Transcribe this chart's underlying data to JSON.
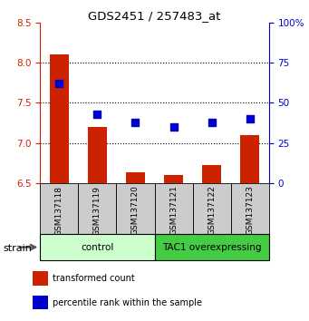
{
  "title": "GDS2451 / 257483_at",
  "samples": [
    "GSM137118",
    "GSM137119",
    "GSM137120",
    "GSM137121",
    "GSM137122",
    "GSM137123"
  ],
  "red_values": [
    8.1,
    7.2,
    6.63,
    6.6,
    6.72,
    7.1
  ],
  "blue_values": [
    62,
    43,
    38,
    35,
    38,
    40
  ],
  "ylim_left": [
    6.5,
    8.5
  ],
  "ylim_right": [
    0,
    100
  ],
  "yticks_left": [
    6.5,
    7.0,
    7.5,
    8.0,
    8.5
  ],
  "yticks_right": [
    0,
    25,
    50,
    75,
    100
  ],
  "ytick_labels_right": [
    "0",
    "25",
    "50",
    "75",
    "100%"
  ],
  "bar_color": "#cc2200",
  "dot_color": "#0000cc",
  "groups": [
    {
      "label": "control",
      "start": 0,
      "end": 3,
      "color": "#ccffcc"
    },
    {
      "label": "TAC1 overexpressing",
      "start": 3,
      "end": 6,
      "color": "#44cc44"
    }
  ],
  "strain_label": "strain",
  "legend_items": [
    {
      "color": "#cc2200",
      "label": "transformed count"
    },
    {
      "color": "#0000cc",
      "label": "percentile rank within the sample"
    }
  ],
  "left_axis_color": "#cc2200",
  "right_axis_color": "#0000cc",
  "bar_width": 0.5,
  "dot_size": 30,
  "sample_box_color": "#cccccc",
  "hgrid_ticks": [
    7.0,
    7.5,
    8.0
  ]
}
